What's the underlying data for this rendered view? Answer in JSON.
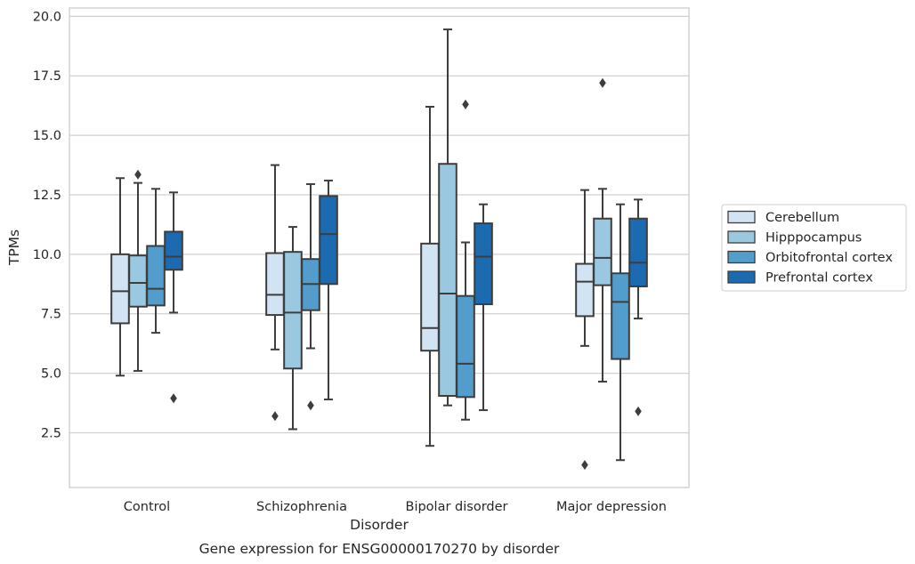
{
  "chart_data": {
    "type": "box",
    "caption": "Gene expression for ENSG00000170270 by disorder",
    "xlabel": "Disorder",
    "ylabel": "TPMs",
    "ylim": [
      0.2,
      20.35
    ],
    "yticks": [
      2.5,
      5.0,
      7.5,
      10.0,
      12.5,
      15.0,
      17.5,
      20.0
    ],
    "ytick_labels": [
      "2.5",
      "5.0",
      "7.5",
      "10.0",
      "12.5",
      "15.0",
      "17.5",
      "20.0"
    ],
    "grid": "horizontal",
    "legend_position": "right",
    "categories": [
      "Control",
      "Schizophrenia",
      "Bipolar disorder",
      "Major depression"
    ],
    "series": [
      {
        "name": "Cerebellum",
        "color": "#d2e3f3",
        "boxes": [
          {
            "whislo": 4.9,
            "q1": 7.1,
            "med": 8.45,
            "q3": 10.0,
            "whishi": 13.2,
            "fliers": []
          },
          {
            "whislo": 6.0,
            "q1": 7.45,
            "med": 8.3,
            "q3": 10.05,
            "whishi": 13.75,
            "fliers": [
              3.2
            ]
          },
          {
            "whislo": 1.95,
            "q1": 5.95,
            "med": 6.9,
            "q3": 10.45,
            "whishi": 16.2,
            "fliers": []
          },
          {
            "whislo": 6.15,
            "q1": 7.4,
            "med": 8.85,
            "q3": 9.6,
            "whishi": 12.7,
            "fliers": [
              1.15
            ]
          }
        ]
      },
      {
        "name": "Hipppocampus",
        "color": "#9ac8e0",
        "boxes": [
          {
            "whislo": 5.1,
            "q1": 7.8,
            "med": 8.8,
            "q3": 9.95,
            "whishi": 13.0,
            "fliers": [
              13.35
            ]
          },
          {
            "whislo": 2.65,
            "q1": 5.2,
            "med": 7.55,
            "q3": 10.1,
            "whishi": 11.15,
            "fliers": []
          },
          {
            "whislo": 3.65,
            "q1": 4.05,
            "med": 8.35,
            "q3": 13.8,
            "whishi": 19.45,
            "fliers": []
          },
          {
            "whislo": 4.65,
            "q1": 8.7,
            "med": 9.85,
            "q3": 11.5,
            "whishi": 12.75,
            "fliers": [
              17.2
            ]
          }
        ]
      },
      {
        "name": "Orbitofrontal cortex",
        "color": "#529dcc",
        "boxes": [
          {
            "whislo": 6.7,
            "q1": 7.85,
            "med": 8.55,
            "q3": 10.35,
            "whishi": 12.75,
            "fliers": []
          },
          {
            "whislo": 6.05,
            "q1": 7.65,
            "med": 8.75,
            "q3": 9.8,
            "whishi": 12.95,
            "fliers": [
              3.65
            ]
          },
          {
            "whislo": 3.05,
            "q1": 4.0,
            "med": 5.4,
            "q3": 8.25,
            "whishi": 10.5,
            "fliers": [
              16.3
            ]
          },
          {
            "whislo": 1.35,
            "q1": 5.6,
            "med": 8.0,
            "q3": 9.2,
            "whishi": 12.1,
            "fliers": []
          }
        ]
      },
      {
        "name": "Prefrontal cortex",
        "color": "#1c6aaf",
        "boxes": [
          {
            "whislo": 7.55,
            "q1": 9.35,
            "med": 9.9,
            "q3": 10.95,
            "whishi": 12.6,
            "fliers": [
              3.95
            ]
          },
          {
            "whislo": 3.9,
            "q1": 8.75,
            "med": 10.85,
            "q3": 12.45,
            "whishi": 13.1,
            "fliers": []
          },
          {
            "whislo": 3.45,
            "q1": 7.9,
            "med": 9.9,
            "q3": 11.3,
            "whishi": 12.1,
            "fliers": []
          },
          {
            "whislo": 7.3,
            "q1": 8.65,
            "med": 9.65,
            "q3": 11.5,
            "whishi": 12.3,
            "fliers": [
              3.4
            ]
          }
        ]
      }
    ]
  }
}
